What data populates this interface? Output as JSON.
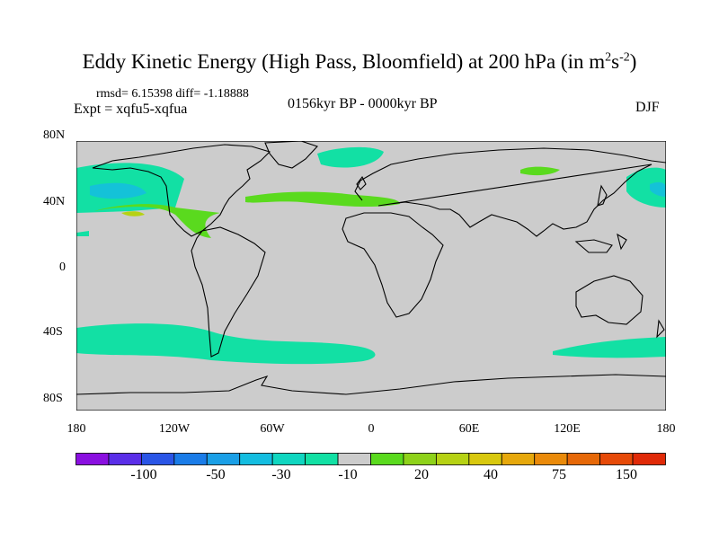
{
  "title": {
    "text": "Eddy Kinetic Energy (High Pass, Bloomfield) at 200 hPa (in m",
    "sup1": "2",
    "mid": "s",
    "sup2": "-2",
    "end": ")"
  },
  "stats": "rmsd= 6.15398 diff= -1.18888",
  "experiment": "Expt = xqfu5-xqfua",
  "period": "0156kyr BP - 0000kyr BP",
  "season": "DJF",
  "chart_data": {
    "type": "map",
    "variable": "Eddy kinetic energy difference, 200 hPa",
    "units": "m2 s-2",
    "projection": "cylindrical equidistant",
    "lon_range": [
      -180,
      180
    ],
    "lat_range": [
      -90,
      90
    ],
    "y_ticks": [
      "80N",
      "40N",
      "0",
      "40S",
      "80S"
    ],
    "x_ticks": [
      "180",
      "120W",
      "60W",
      "0",
      "60E",
      "120E",
      "180"
    ],
    "colorbar_labels": [
      "-100",
      "-50",
      "-30",
      "-10",
      "20",
      "40",
      "75",
      "150"
    ],
    "colorbar_colors": [
      "#8a10e0",
      "#5a2ee8",
      "#2a55e6",
      "#1a7ce8",
      "#1a9fe6",
      "#14bde0",
      "#10d6c0",
      "#12e0a4",
      "#cccccc",
      "#5ada1e",
      "#8ed21a",
      "#b6d214",
      "#d8c80e",
      "#e6a80c",
      "#ea8a0a",
      "#e66808",
      "#e64a08",
      "#e02a08"
    ],
    "regions": [
      {
        "name": "N Pacific",
        "class": "-10 to -30",
        "color": "#12e0a4"
      },
      {
        "name": "N Atlantic / Mediterranean",
        "class": "10 to 20",
        "color": "#5ada1e"
      },
      {
        "name": "Subtropical E Pacific",
        "class": "10 to 20",
        "color": "#5ada1e"
      },
      {
        "name": "Norwegian Sea",
        "class": "-10 to -30",
        "color": "#12e0a4"
      },
      {
        "name": "Central Asia",
        "class": "10 to 20",
        "color": "#5ada1e"
      },
      {
        "name": "Southern Ocean",
        "class": "-10 to -30",
        "color": "#12e0a4"
      }
    ]
  }
}
